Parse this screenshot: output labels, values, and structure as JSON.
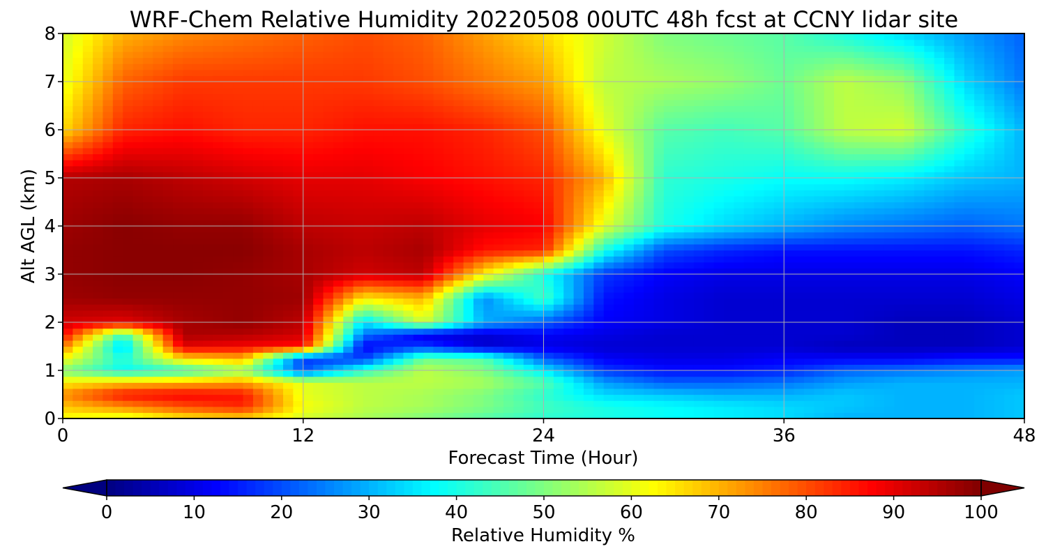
{
  "chart_data": {
    "type": "heatmap",
    "title": "WRF-Chem Relative Humidity 20220508 00UTC 48h fcst at CCNY lidar site",
    "xlabel": "Forecast Time (Hour)",
    "ylabel": "Alt AGL (km)",
    "xlim": [
      0,
      48
    ],
    "ylim": [
      0,
      8
    ],
    "x_ticks": [
      "0",
      "12",
      "24",
      "36",
      "48"
    ],
    "y_ticks": [
      "0",
      "1",
      "2",
      "3",
      "4",
      "5",
      "6",
      "7",
      "8"
    ],
    "grid": true,
    "colorbar": {
      "label": "Relative Humidity %",
      "colormap": "jet",
      "range": [
        0,
        100
      ],
      "extend": "both",
      "ticks": [
        "0",
        "10",
        "20",
        "30",
        "40",
        "50",
        "60",
        "70",
        "80",
        "90",
        "100"
      ]
    },
    "x": [
      0,
      3,
      6,
      9,
      12,
      15,
      18,
      21,
      24,
      27,
      30,
      33,
      36,
      39,
      42,
      45,
      48
    ],
    "y": [
      0,
      0.25,
      0.5,
      0.75,
      1,
      1.25,
      1.5,
      1.75,
      2,
      2.5,
      3,
      3.5,
      4,
      5,
      6,
      7,
      8
    ],
    "values": [
      [
        62,
        58,
        64,
        66,
        58,
        54,
        50,
        46,
        42,
        40,
        38,
        36,
        34,
        30,
        30,
        30,
        32
      ],
      [
        68,
        74,
        80,
        84,
        62,
        56,
        54,
        50,
        44,
        40,
        38,
        36,
        34,
        32,
        30,
        30,
        32
      ],
      [
        74,
        86,
        88,
        86,
        60,
        56,
        54,
        50,
        42,
        34,
        32,
        30,
        30,
        32,
        30,
        30,
        32
      ],
      [
        64,
        68,
        70,
        72,
        60,
        56,
        56,
        54,
        46,
        28,
        22,
        22,
        24,
        28,
        30,
        30,
        30
      ],
      [
        50,
        38,
        42,
        52,
        20,
        42,
        56,
        50,
        36,
        18,
        14,
        14,
        16,
        22,
        24,
        26,
        28
      ],
      [
        62,
        40,
        66,
        70,
        18,
        18,
        48,
        46,
        22,
        12,
        10,
        10,
        12,
        12,
        12,
        14,
        14
      ],
      [
        76,
        32,
        90,
        88,
        86,
        12,
        18,
        8,
        10,
        8,
        8,
        8,
        8,
        6,
        6,
        6,
        8
      ],
      [
        88,
        44,
        96,
        95,
        92,
        24,
        10,
        8,
        12,
        10,
        8,
        8,
        8,
        8,
        6,
        6,
        8
      ],
      [
        92,
        90,
        96,
        98,
        94,
        34,
        58,
        30,
        22,
        12,
        10,
        8,
        8,
        8,
        6,
        6,
        8
      ],
      [
        97,
        98,
        98,
        98,
        97,
        64,
        70,
        26,
        44,
        14,
        10,
        8,
        8,
        8,
        8,
        8,
        10
      ],
      [
        98,
        99,
        99,
        98,
        96,
        92,
        94,
        64,
        40,
        18,
        12,
        10,
        10,
        10,
        10,
        10,
        12
      ],
      [
        98,
        99,
        99,
        99,
        96,
        94,
        96,
        86,
        84,
        40,
        20,
        16,
        14,
        14,
        14,
        14,
        16
      ],
      [
        97,
        99,
        98,
        98,
        94,
        93,
        94,
        90,
        88,
        60,
        40,
        34,
        30,
        26,
        24,
        22,
        24
      ],
      [
        95,
        96,
        94,
        92,
        90,
        90,
        88,
        86,
        84,
        70,
        42,
        40,
        38,
        38,
        36,
        32,
        30
      ],
      [
        66,
        84,
        86,
        84,
        84,
        86,
        86,
        84,
        80,
        60,
        46,
        44,
        46,
        56,
        58,
        42,
        30
      ],
      [
        60,
        78,
        82,
        82,
        82,
        82,
        80,
        76,
        72,
        56,
        54,
        52,
        48,
        56,
        52,
        34,
        24
      ],
      [
        58,
        70,
        74,
        76,
        78,
        80,
        78,
        72,
        66,
        58,
        50,
        48,
        46,
        40,
        34,
        28,
        22
      ]
    ]
  }
}
